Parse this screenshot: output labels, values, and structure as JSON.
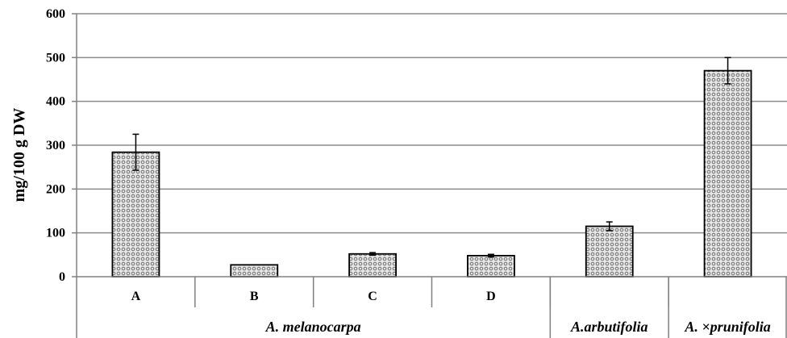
{
  "chart_data": {
    "type": "bar",
    "title": "",
    "xlabel": "",
    "ylabel": "mg/100 g DW",
    "ylim": [
      0,
      600
    ],
    "yticks": [
      "0",
      "100",
      "200",
      "300",
      "400",
      "500",
      "600"
    ],
    "grid": true,
    "categories": [
      "A",
      "B",
      "C",
      "D",
      "",
      ""
    ],
    "values": [
      284,
      27,
      52,
      48,
      115,
      470
    ],
    "error_bars": [
      41,
      0,
      3,
      3,
      10,
      30
    ],
    "groups": [
      {
        "label": "A. melanocarpa",
        "span": [
          0,
          3
        ]
      },
      {
        "label": "A.arbutifolia",
        "span": [
          4,
          4
        ]
      },
      {
        "label": "A. ×prunifolia",
        "span": [
          5,
          5
        ]
      }
    ],
    "bar_pattern": "crosshatch-grey"
  }
}
